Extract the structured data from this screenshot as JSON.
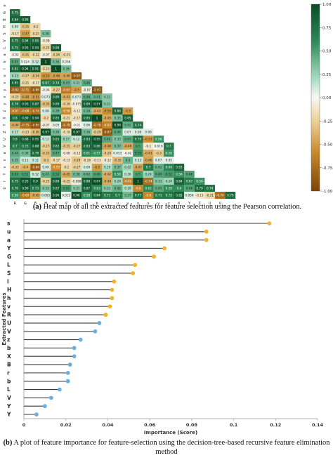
{
  "chart_data": [
    {
      "type": "heatmap",
      "labels": [
        "s",
        "c",
        "u",
        "G",
        "a",
        "Y",
        "L",
        "S",
        "l",
        "H",
        "h",
        "v",
        "R",
        "U",
        "V",
        "z",
        "b",
        "X",
        "B",
        "r",
        "b",
        "L",
        "V",
        "Y",
        "Y",
        "V"
      ],
      "tick_labels_x": [
        "R",
        "G",
        "B",
        "H",
        "S",
        "V",
        "L",
        "a",
        "b",
        "l",
        "u",
        "v",
        "y",
        "x",
        "y",
        "z",
        "X",
        "Y",
        "Z",
        "U",
        "V"
      ],
      "tick_labels_y": [
        "e",
        "G",
        "B",
        "H",
        "S",
        "V",
        "L",
        "a",
        "b",
        "l",
        "u",
        "v",
        "y",
        "x",
        "y",
        "z",
        "X",
        "Y",
        "Z",
        "U",
        "V",
        "a",
        "s",
        "v",
        "Y",
        "r",
        "b"
      ],
      "rows": [
        [
          "0.75"
        ],
        [
          "0.84",
          "0.89"
        ],
        [
          "0.09",
          "-0.31",
          "-0.2"
        ],
        [
          "-0.17",
          "-0.47",
          "-0.23",
          "0.36"
        ],
        [
          "0.75",
          "0.84",
          "0.85",
          "-0.08"
        ],
        [
          "0.75",
          "0.93",
          "0.93",
          "-0.25",
          "0.88"
        ],
        [
          "-0.02",
          "-0.31",
          "-0.22",
          "-0.07",
          "-0.26",
          "-0.21"
        ],
        [
          "0.47",
          "0.024",
          "0.12",
          "1",
          "0.36",
          "0.036"
        ],
        [
          "0.82",
          "0.94",
          "0.91",
          "-0.21",
          "1",
          "0.36"
        ],
        [
          "0.23",
          "-0.27",
          "-0.34",
          "-0.53",
          "-0.48",
          "-0.46",
          "-0.87"
        ],
        [
          "0.85",
          "-0.21",
          "-0.17",
          "0.67",
          "0.74",
          "0.43",
          "0.31",
          "0.46"
        ],
        [
          "-0.82",
          "-0.71",
          "-0.86",
          "-0.04",
          "-0.27",
          "-0.67",
          "-0.5",
          "-0.07",
          "-0.91"
        ],
        [
          "-0.25",
          "-0.48",
          "-0.51",
          "0.073",
          "0.86",
          "-0.43",
          "0.073",
          "0.46",
          "0.41",
          "0.31"
        ],
        [
          "0.74",
          "0.93",
          "0.87",
          "-0.35",
          "0.89",
          "-0.26",
          "-0.075",
          "0.89",
          "0.97",
          "0.31"
        ],
        [
          "-0.67",
          "-0.68",
          "-0.74",
          "0.08",
          "0.39",
          "-0.58",
          "-0.12",
          "0.39",
          "-0.43",
          "-0.55",
          "0.84",
          "-0.5"
        ],
        [
          "0.8",
          "0.89",
          "0.94",
          "-0.2",
          "0.85",
          "-0.21",
          "-0.17",
          "0.85",
          "1",
          "-0.45",
          "0.35",
          "0.85"
        ],
        [
          "-0.44",
          "-0.75",
          "-0.89",
          "-0.07",
          "0.05",
          "-0.78",
          "-0.01",
          "0.06",
          "-0.78",
          "-0.63",
          "0.99",
          "0.42",
          "0.74"
        ],
        [
          "0.17",
          "-0.23",
          "-0.36",
          "0.97",
          "0.36",
          "-0.16",
          "0.97",
          "0.36",
          "-0.29",
          "-0.87",
          "0.46",
          "0.07",
          "0.08",
          "0.06"
        ],
        [
          "0.8",
          "0.88",
          "0.95",
          "0.12",
          "0.83",
          "0.27",
          "0.12",
          "0.83",
          "0.95",
          "0.45",
          "0.33",
          "0.47",
          "0.76",
          "-0.53",
          "0.56"
        ],
        [
          "0.7",
          "0.73",
          "0.88",
          "-0.27",
          "0.83",
          "-0.31",
          "-0.27",
          "0.83",
          "0.86",
          "-0.48",
          "0.37",
          "-0.46",
          "0.5",
          "-0.1",
          "0.016",
          "0.7"
        ],
        [
          "0.44",
          "0.36",
          "0.79",
          "-0.33",
          "0.47",
          "-0.08",
          "-0.13",
          "0.61",
          "0.57",
          "-0.29",
          "0.053",
          "-0.02",
          "0.55",
          "-0.43",
          "-0.3",
          "0.56"
        ],
        [
          "0.35",
          "0.11",
          "0.11",
          "-0.3",
          "-0.17",
          "-0.13",
          "-0.29",
          "-0.18",
          "-0.13",
          "-0.12",
          "-0.35",
          "0.4",
          "0.12",
          "-0.46",
          "0.07",
          "0.05"
        ],
        [
          "-0.33",
          "-0.4",
          "-0.84",
          "0.09",
          "-0.59",
          "-0.2",
          "-0.27",
          "0.09",
          "-0.5",
          "0.19",
          "0.37",
          "0.22",
          "-0.47",
          "0.7",
          "0.42",
          "0.64",
          "0.83"
        ],
        [
          "0.52",
          "0.51",
          "0.12",
          "0.43",
          "0.52",
          "-0.45",
          "0.38",
          "0.42",
          "0.49",
          "-0.42",
          "0.58",
          "0.16",
          "0.5",
          "0.24",
          "0.49",
          "0.52",
          "0.58",
          "0.48"
        ],
        [
          "0.75",
          "0.93",
          "0.9",
          "-0.25",
          "0.88",
          "-0.25",
          "-0.088",
          "0.88",
          "0.97",
          "-0.44",
          "0.24",
          "-0.61",
          "1",
          "-0.74",
          "0.31",
          "0.24",
          "0.84",
          "0.67",
          "0.56"
        ],
        [
          "0.76",
          "0.89",
          "0.73",
          "0.33",
          "0.87",
          "0.52",
          "0.31",
          "0.87",
          "0.63",
          "0.31",
          "0.42",
          "0.19",
          "-0.6",
          "0.62",
          "0.45",
          "0.59",
          "0.6",
          "0.48",
          "0.79",
          "0.74"
        ],
        [
          "0.56",
          "-0.69",
          "-0.45",
          "0.093",
          "0.96",
          "0.033",
          "0.96",
          "0.58",
          "0.84",
          "0.71",
          "0.7",
          "0.37",
          "0.77",
          "-0.6",
          "0.71",
          "0.72",
          "0.85",
          "0.056",
          "-0.11",
          "-0.21",
          "-0.74",
          "0.79"
        ]
      ],
      "colorbar": {
        "min": -1,
        "max": 1,
        "ticks": [
          "1.00",
          "0.75",
          "0.50",
          "0.25",
          "0.00",
          "-0.25",
          "-0.50",
          "-0.75",
          "-1.00"
        ],
        "low_color": "#7a4508",
        "mid_color": "#f7f7f4",
        "high_color": "#0c4a24"
      }
    },
    {
      "type": "lollipop",
      "features": [
        "s",
        "u",
        "a",
        "Y",
        "G",
        "L",
        "S",
        "l",
        "H",
        "h",
        "v",
        "R",
        "U",
        "V",
        "z",
        "b",
        "X",
        "B",
        "r",
        "b",
        "L",
        "V",
        "Y",
        "Y"
      ],
      "values": [
        0.117,
        0.087,
        0.087,
        0.067,
        0.062,
        0.053,
        0.052,
        0.043,
        0.042,
        0.042,
        0.041,
        0.039,
        0.036,
        0.034,
        0.027,
        0.024,
        0.024,
        0.022,
        0.021,
        0.021,
        0.017,
        0.013,
        0.01,
        0.006
      ],
      "colors": [
        "#f5b31f",
        "#f5b31f",
        "#f5b31f",
        "#f5b31f",
        "#f5b31f",
        "#f5b31f",
        "#f5b31f",
        "#f5b31f",
        "#f5b31f",
        "#f5b31f",
        "#f5b31f",
        "#f5b31f",
        "#6aaee0",
        "#6aaee0",
        "#6aaee0",
        "#6aaee0",
        "#6aaee0",
        "#6aaee0",
        "#6aaee0",
        "#6aaee0",
        "#6aaee0",
        "#6aaee0",
        "#6aaee0",
        "#6aaee0"
      ],
      "xlabel": "Importance (Score)",
      "ylabel": "Extracted Features",
      "xlim": [
        0,
        0.14
      ],
      "xticks": [
        "0",
        "0.02",
        "0.04",
        "0.06",
        "0.08",
        "0.1",
        "0.12",
        "0.14"
      ]
    }
  ],
  "captions": {
    "a_label": "(a)",
    "a_text": " Heat map of all the extracted features for feature selection using the Pearson correlation.",
    "b_label": "(b)",
    "b_text": " A plot of feature importance for feature-selection using the decision-tree-based recursive feature elimination method"
  }
}
